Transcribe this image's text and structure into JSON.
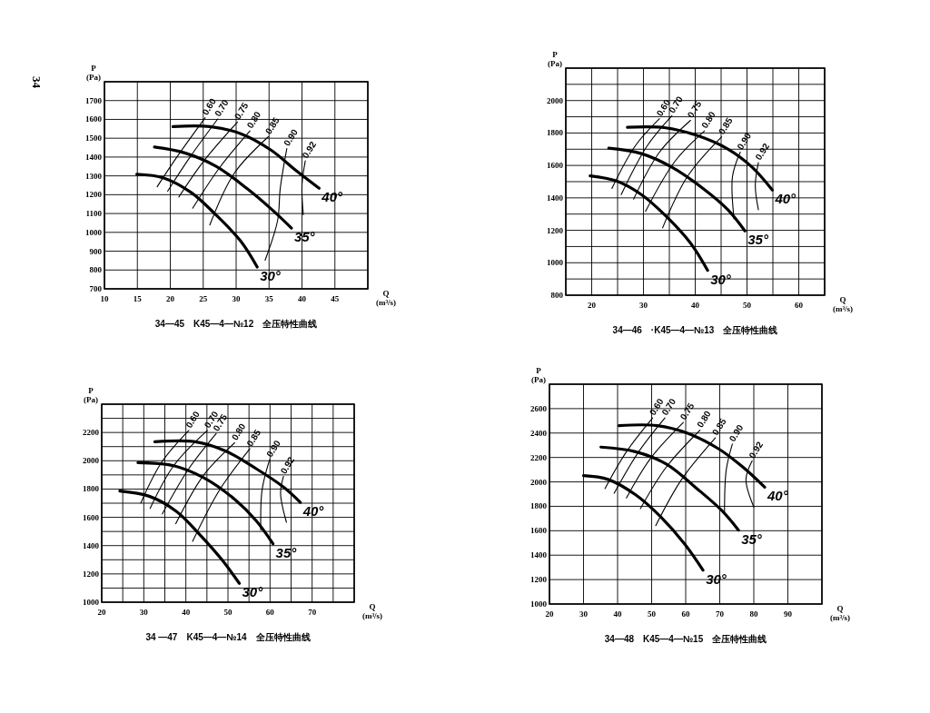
{
  "chart_data": [
    {
      "type": "line",
      "title": "34—45　K45—4—№12　全压特性曲线",
      "xlabel": "Q (m³/s)",
      "ylabel": "P (Pa)",
      "annotations": [
        "34"
      ],
      "grid": true,
      "xlim": [
        10,
        50
      ],
      "ylim": [
        700,
        1800
      ],
      "xticks": [
        10,
        15,
        20,
        25,
        30,
        35,
        40,
        45,
        {
          "value": 50,
          "label": null
        }
      ],
      "yticks": [
        700,
        800,
        900,
        1000,
        1100,
        1200,
        1300,
        1400,
        1500,
        1600,
        1700,
        {
          "value": 1800,
          "label": null
        }
      ],
      "series": [
        {
          "name": "30°",
          "color": "#000000",
          "x": [
            14.9,
            19,
            23.2,
            26.9,
            30.7,
            33.2
          ],
          "values": [
            1309,
            1289,
            1211,
            1094,
            953,
            816
          ]
        },
        {
          "name": "35°",
          "color": "#000000",
          "x": [
            17.6,
            22.2,
            26.9,
            31.6,
            35.3,
            38.4
          ],
          "values": [
            1453,
            1422,
            1352,
            1234,
            1125,
            1023
          ]
        },
        {
          "name": "40°",
          "color": "#000000",
          "x": [
            20.4,
            26,
            30.7,
            35.3,
            39.1,
            42.6
          ],
          "values": [
            1562,
            1562,
            1524,
            1437,
            1328,
            1234
          ]
        },
        {
          "name": "0.60",
          "color": "#000000",
          "x": [
            18,
            21,
            25.3
          ],
          "values": [
            1242,
            1400,
            1609
          ]
        },
        {
          "name": "0.70",
          "color": "#000000",
          "x": [
            19.6,
            23,
            27.2
          ],
          "values": [
            1219,
            1400,
            1602
          ]
        },
        {
          "name": "0.75",
          "color": "#000000",
          "x": [
            21.3,
            25,
            30.2
          ],
          "values": [
            1188,
            1375,
            1586
          ]
        },
        {
          "name": "0.80",
          "color": "#000000",
          "x": [
            23.4,
            27.5,
            32.1
          ],
          "values": [
            1128,
            1344,
            1539
          ]
        },
        {
          "name": "0.85",
          "color": "#000000",
          "x": [
            26,
            29.7,
            34.9
          ],
          "values": [
            1039,
            1313,
            1508
          ]
        },
        {
          "name": "0.90",
          "color": "#000000",
          "x": [
            34.4,
            36.3,
            36.7,
            37.7
          ],
          "values": [
            852,
            1063,
            1234,
            1445
          ]
        },
        {
          "name": "0.92",
          "color": "#000000",
          "x": [
            40.2,
            40,
            40.5
          ],
          "values": [
            1094,
            1250,
            1380
          ]
        }
      ]
    },
    {
      "type": "line",
      "title": "34—46　·K45—4—№13　全压特性曲线",
      "xlabel": "Q (m³/s)",
      "ylabel": "P (Pa)",
      "grid": true,
      "xlim": [
        15,
        65
      ],
      "ylim": [
        800,
        2200
      ],
      "xticks": [
        {
          "value": 15,
          "label": null
        },
        20,
        {
          "value": 25,
          "label": null
        },
        30,
        {
          "value": 35,
          "label": null
        },
        40,
        {
          "value": 45,
          "label": null
        },
        50,
        {
          "value": 55,
          "label": null
        },
        60,
        {
          "value": 65,
          "label": null
        }
      ],
      "yticks": [
        800,
        {
          "value": 900,
          "label": null
        },
        1000,
        {
          "value": 1100,
          "label": null
        },
        1200,
        {
          "value": 1300,
          "label": null
        },
        1400,
        {
          "value": 1500,
          "label": null
        },
        1600,
        {
          "value": 1700,
          "label": null
        },
        1800,
        {
          "value": 1900,
          "label": null
        },
        2000,
        {
          "value": 2100,
          "label": null
        },
        {
          "value": 2200,
          "label": null
        }
      ],
      "series": [
        {
          "name": "30°",
          "color": "#000000",
          "x": [
            19.7,
            24.8,
            29.6,
            34.3,
            39.1,
            42.4
          ],
          "values": [
            1536,
            1504,
            1420,
            1289,
            1121,
            953
          ]
        },
        {
          "name": "35°",
          "color": "#000000",
          "x": [
            23.3,
            29.6,
            35.5,
            41.5,
            46.3,
            49.6
          ],
          "values": [
            1706,
            1673,
            1589,
            1458,
            1327,
            1196
          ]
        },
        {
          "name": "40°",
          "color": "#000000",
          "x": [
            26.9,
            34.3,
            40.3,
            46.3,
            51,
            54.9
          ],
          "values": [
            1835,
            1832,
            1785,
            1701,
            1589,
            1448
          ]
        },
        {
          "name": "0.60",
          "color": "#000000",
          "x": [
            23.9,
            28.4,
            33.1
          ],
          "values": [
            1458,
            1720,
            1888
          ]
        },
        {
          "name": "0.70",
          "color": "#000000",
          "x": [
            25.7,
            30.7,
            35.5
          ],
          "values": [
            1420,
            1720,
            1907
          ]
        },
        {
          "name": "0.75",
          "color": "#000000",
          "x": [
            28.1,
            33.1,
            39.1
          ],
          "values": [
            1392,
            1682,
            1878
          ]
        },
        {
          "name": "0.80",
          "color": "#000000",
          "x": [
            30.4,
            36.1,
            41.8
          ],
          "values": [
            1317,
            1626,
            1813
          ]
        },
        {
          "name": "0.85",
          "color": "#000000",
          "x": [
            33.7,
            38.5,
            45.1
          ],
          "values": [
            1215,
            1532,
            1776
          ]
        },
        {
          "name": "0.90",
          "color": "#000000",
          "x": [
            47.5,
            47.2,
            48.7
          ],
          "values": [
            1270,
            1532,
            1682
          ]
        },
        {
          "name": "0.92",
          "color": "#000000",
          "x": [
            52.2,
            51.6,
            52.2
          ],
          "values": [
            1327,
            1476,
            1617
          ]
        }
      ]
    },
    {
      "type": "line",
      "title": "34 —47　K45—4—№14　全压特性曲线",
      "xlabel": "Q (m³/s)",
      "ylabel": "P (Pa)",
      "grid": true,
      "xlim": [
        20,
        80
      ],
      "ylim": [
        1000,
        2400
      ],
      "xticks": [
        20,
        {
          "value": 25,
          "label": null
        },
        30,
        {
          "value": 35,
          "label": null
        },
        40,
        {
          "value": 45,
          "label": null
        },
        50,
        {
          "value": 55,
          "label": null
        },
        60,
        {
          "value": 65,
          "label": null
        },
        70,
        {
          "value": 75,
          "label": null
        },
        {
          "value": 80,
          "label": null
        }
      ],
      "yticks": [
        1000,
        {
          "value": 1100,
          "label": null
        },
        1200,
        {
          "value": 1300,
          "label": null
        },
        1400,
        {
          "value": 1500,
          "label": null
        },
        1600,
        {
          "value": 1700,
          "label": null
        },
        1800,
        {
          "value": 1900,
          "label": null
        },
        2000,
        {
          "value": 2100,
          "label": null
        },
        2200,
        {
          "value": 2300,
          "label": null
        },
        {
          "value": 2400,
          "label": null
        }
      ],
      "series": [
        {
          "name": "30°",
          "color": "#000000",
          "x": [
            24.3,
            31.3,
            37.8,
            43.6,
            48.7,
            52.7
          ],
          "values": [
            1786,
            1749,
            1641,
            1468,
            1295,
            1133
          ]
        },
        {
          "name": "35°",
          "color": "#000000",
          "x": [
            28.6,
            37.1,
            44.3,
            51.6,
            56.7,
            60.7
          ],
          "values": [
            1987,
            1965,
            1879,
            1727,
            1576,
            1413
          ]
        },
        {
          "name": "40°",
          "color": "#000000",
          "x": [
            32.6,
            42.2,
            49.4,
            56.7,
            63.2,
            67.2
          ],
          "values": [
            2134,
            2134,
            2069,
            1944,
            1814,
            1706
          ]
        },
        {
          "name": "0.60",
          "color": "#000000",
          "x": [
            29.3,
            34.2,
            40.7
          ],
          "values": [
            1702,
            1987,
            2214
          ]
        },
        {
          "name": "0.70",
          "color": "#000000",
          "x": [
            31.5,
            37.1,
            45.1
          ],
          "values": [
            1663,
            1965,
            2214
          ]
        },
        {
          "name": "0.75",
          "color": "#000000",
          "x": [
            34.4,
            40.7,
            47.2
          ],
          "values": [
            1624,
            1944,
            2192
          ]
        },
        {
          "name": "0.80",
          "color": "#000000",
          "x": [
            37.6,
            44.3,
            51.6
          ],
          "values": [
            1555,
            1901,
            2127
          ]
        },
        {
          "name": "0.85",
          "color": "#000000",
          "x": [
            41.6,
            48,
            55.2
          ],
          "values": [
            1430,
            1793,
            2084
          ]
        },
        {
          "name": "0.90",
          "color": "#000000",
          "x": [
            57.8,
            58.1,
            59.9
          ],
          "values": [
            1511,
            1792,
            2008
          ]
        },
        {
          "name": "0.92",
          "color": "#000000",
          "x": [
            63.9,
            62.5,
            63.2
          ],
          "values": [
            1565,
            1771,
            1890
          ]
        }
      ]
    },
    {
      "type": "line",
      "title": "34—48　K45—4—№15　全压特性曲线",
      "xlabel": "Q (m³/s)",
      "ylabel": "P (Pa)",
      "grid": true,
      "xlim": [
        20,
        100
      ],
      "ylim": [
        1000,
        2800
      ],
      "xticks": [
        20,
        30,
        40,
        50,
        60,
        70,
        80,
        90,
        {
          "value": 100,
          "label": null
        }
      ],
      "yticks": [
        1000,
        1200,
        1400,
        1600,
        1800,
        2000,
        2200,
        2400,
        2600,
        {
          "value": 2800,
          "label": null
        }
      ],
      "series": [
        {
          "name": "30°",
          "color": "#000000",
          "x": [
            30,
            37.2,
            45.3,
            52.5,
            59.7,
            65.1
          ],
          "values": [
            2051,
            2020,
            1894,
            1718,
            1491,
            1277
          ]
        },
        {
          "name": "35°",
          "color": "#000000",
          "x": [
            35.1,
            45.3,
            54.3,
            63.3,
            70.5,
            75.5
          ],
          "values": [
            2285,
            2247,
            2146,
            1945,
            1768,
            1605
          ]
        },
        {
          "name": "40°",
          "color": "#000000",
          "x": [
            40.4,
            51.6,
            60.6,
            69.6,
            76.8,
            83.2
          ],
          "values": [
            2461,
            2461,
            2398,
            2272,
            2121,
            1957
          ]
        },
        {
          "name": "0.60",
          "color": "#000000",
          "x": [
            36.3,
            42.6,
            50.3
          ],
          "values": [
            1945,
            2247,
            2524
          ]
        },
        {
          "name": "0.70",
          "color": "#000000",
          "x": [
            39,
            46.2,
            53.9
          ],
          "values": [
            1907,
            2247,
            2524
          ]
        },
        {
          "name": "0.75",
          "color": "#000000",
          "x": [
            42.6,
            49.8,
            59.3
          ],
          "values": [
            1869,
            2197,
            2487
          ]
        },
        {
          "name": "0.80",
          "color": "#000000",
          "x": [
            46.7,
            54.3,
            64.2
          ],
          "values": [
            1781,
            2121,
            2424
          ]
        },
        {
          "name": "0.85",
          "color": "#000000",
          "x": [
            51.2,
            58.8,
            68.7
          ],
          "values": [
            1642,
            2020,
            2361
          ]
        },
        {
          "name": "0.90",
          "color": "#000000",
          "x": [
            71.4,
            71.9,
            73.7
          ],
          "values": [
            1743,
            2096,
            2310
          ]
        },
        {
          "name": "0.92",
          "color": "#000000",
          "x": [
            80,
            77.7,
            79.5
          ],
          "values": [
            1794,
            2020,
            2172
          ]
        }
      ]
    }
  ]
}
